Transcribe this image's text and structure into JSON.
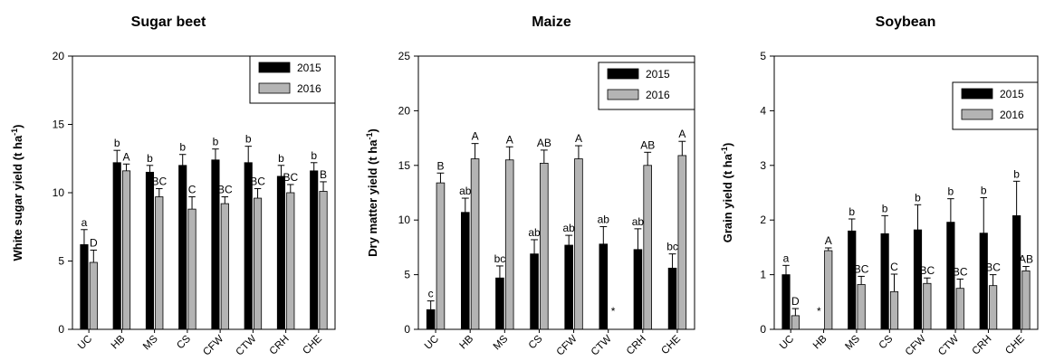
{
  "chart_data": [
    {
      "type": "bar",
      "title": "Sugar beet",
      "ylabel": "White sugar yield (t ha",
      "ylabel_sup": "-1",
      "ylabel_end": ")",
      "ylim": [
        0,
        20
      ],
      "yticks": [
        0,
        5,
        10,
        15,
        20
      ],
      "categories": [
        "UC",
        "HB",
        "MS",
        "CS",
        "CFW",
        "CTW",
        "CRH",
        "CHE"
      ],
      "legend_position": "top-right",
      "series": [
        {
          "name": "2015",
          "color": "#000000",
          "values": [
            6.2,
            12.2,
            11.5,
            12.0,
            12.4,
            12.2,
            11.2,
            11.6
          ],
          "errors": [
            1.1,
            0.9,
            0.5,
            0.8,
            0.8,
            1.2,
            0.8,
            0.6
          ],
          "letters": [
            "a",
            "b",
            "b",
            "b",
            "b",
            "b",
            "b",
            "b"
          ]
        },
        {
          "name": "2016",
          "color": "#b4b4b4",
          "values": [
            4.9,
            11.6,
            9.7,
            8.8,
            9.2,
            9.6,
            10.0,
            10.1
          ],
          "errors": [
            0.9,
            0.5,
            0.6,
            0.9,
            0.5,
            0.7,
            0.6,
            0.7
          ],
          "letters": [
            "D",
            "A",
            "BC",
            "C",
            "BC",
            "BC",
            "BC",
            "B"
          ]
        }
      ]
    },
    {
      "type": "bar",
      "title": "Maize",
      "ylabel": "Dry matter yield (t ha",
      "ylabel_sup": "-1",
      "ylabel_end": ")",
      "ylim": [
        0,
        25
      ],
      "yticks": [
        0,
        5,
        10,
        15,
        20,
        25
      ],
      "categories": [
        "UC",
        "HB",
        "MS",
        "CS",
        "CFW",
        "CTW",
        "CRH",
        "CHE"
      ],
      "legend_position": "top-right",
      "series": [
        {
          "name": "2015",
          "color": "#000000",
          "values": [
            1.8,
            10.7,
            4.7,
            6.9,
            7.7,
            7.8,
            7.3,
            5.6
          ],
          "errors": [
            0.8,
            1.3,
            1.1,
            1.3,
            0.9,
            1.6,
            1.9,
            1.3
          ],
          "letters": [
            "c",
            "ab",
            "bc",
            "ab",
            "ab",
            "ab",
            "ab",
            "bc"
          ]
        },
        {
          "name": "2016",
          "color": "#b4b4b4",
          "values": [
            13.4,
            15.6,
            15.5,
            15.2,
            15.6,
            null,
            15.0,
            15.9
          ],
          "errors": [
            0.9,
            1.4,
            1.2,
            1.2,
            1.2,
            null,
            1.2,
            1.3
          ],
          "letters": [
            "B",
            "A",
            "A",
            "AB",
            "A",
            "",
            "AB",
            "A"
          ]
        }
      ],
      "missing_marker": "*"
    },
    {
      "type": "bar",
      "title": "Soybean",
      "ylabel": "Grain yield (t ha",
      "ylabel_sup": "-1",
      "ylabel_end": ")",
      "ylim": [
        0,
        5
      ],
      "yticks": [
        0,
        1,
        2,
        3,
        4,
        5
      ],
      "categories": [
        "UC",
        "HB",
        "MS",
        "CS",
        "CFW",
        "CTW",
        "CRH",
        "CHE"
      ],
      "legend_position": "top-right",
      "series": [
        {
          "name": "2015",
          "color": "#000000",
          "values": [
            1.0,
            null,
            1.8,
            1.75,
            1.82,
            1.96,
            1.76,
            2.08
          ],
          "errors": [
            0.17,
            null,
            0.22,
            0.33,
            0.46,
            0.43,
            0.65,
            0.63
          ],
          "letters": [
            "a",
            "",
            "b",
            "b",
            "b",
            "b",
            "b",
            "b"
          ]
        },
        {
          "name": "2016",
          "color": "#b4b4b4",
          "values": [
            0.25,
            1.44,
            0.82,
            0.69,
            0.84,
            0.75,
            0.8,
            1.07
          ],
          "errors": [
            0.13,
            0.05,
            0.15,
            0.32,
            0.1,
            0.17,
            0.2,
            0.08
          ],
          "letters": [
            "D",
            "A",
            "BC",
            "C",
            "BC",
            "BC",
            "BC",
            "AB"
          ]
        }
      ],
      "missing_marker": "*"
    }
  ]
}
